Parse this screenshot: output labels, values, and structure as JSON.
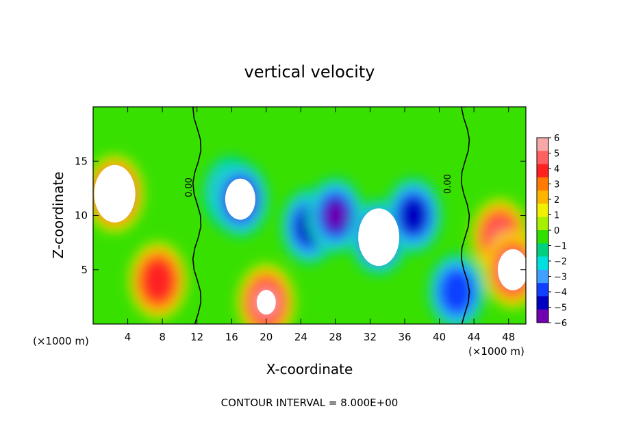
{
  "chart_data": {
    "type": "heatmap",
    "title": "vertical velocity",
    "xlabel": "X-coordinate",
    "ylabel": "Z-coordinate",
    "x_unit_left": "(×1000 m)",
    "x_unit_right": "(×1000 m)",
    "xlim": [
      0,
      50
    ],
    "ylim": [
      0,
      20
    ],
    "xticks": [
      4,
      8,
      12,
      16,
      20,
      24,
      28,
      32,
      36,
      40,
      44,
      48
    ],
    "yticks": [
      5,
      10,
      15
    ],
    "colorbar": {
      "min": -6,
      "max": 6,
      "ticks": [
        6,
        5,
        4,
        3,
        2,
        1,
        0,
        -1,
        -2,
        -3,
        -4,
        -5,
        -6
      ],
      "colors": [
        "#f8a8a8",
        "#ff6060",
        "#ff2020",
        "#ff7a00",
        "#ffb400",
        "#f0f000",
        "#a8f000",
        "#30e000",
        "#00d080",
        "#00e0e0",
        "#40a0ff",
        "#1040ff",
        "#0000c0",
        "#7000b0"
      ]
    },
    "contour_labels": [
      "0.00",
      "0.00"
    ],
    "footnote": "CONTOUR INTERVAL = 8.000E+00",
    "features": [
      {
        "x": 2.5,
        "z": 12,
        "value": 9
      },
      {
        "x": 7.5,
        "z": 4,
        "value": 4
      },
      {
        "x": 20,
        "z": 2,
        "value": 7
      },
      {
        "x": 16,
        "z": 12,
        "value": -5
      },
      {
        "x": 17,
        "z": 11.5,
        "value": -8
      },
      {
        "x": 25,
        "z": 9,
        "value": -5
      },
      {
        "x": 28,
        "z": 10,
        "value": -6
      },
      {
        "x": 33,
        "z": 8,
        "value": -9
      },
      {
        "x": 37,
        "z": 10,
        "value": -5
      },
      {
        "x": 42,
        "z": 3,
        "value": -4
      },
      {
        "x": 47,
        "z": 8,
        "value": 5
      },
      {
        "x": 48.5,
        "z": 5,
        "value": 8
      },
      {
        "x": 12,
        "z": 10,
        "value": 0
      },
      {
        "x": 43,
        "z": 10,
        "value": 0
      }
    ]
  }
}
